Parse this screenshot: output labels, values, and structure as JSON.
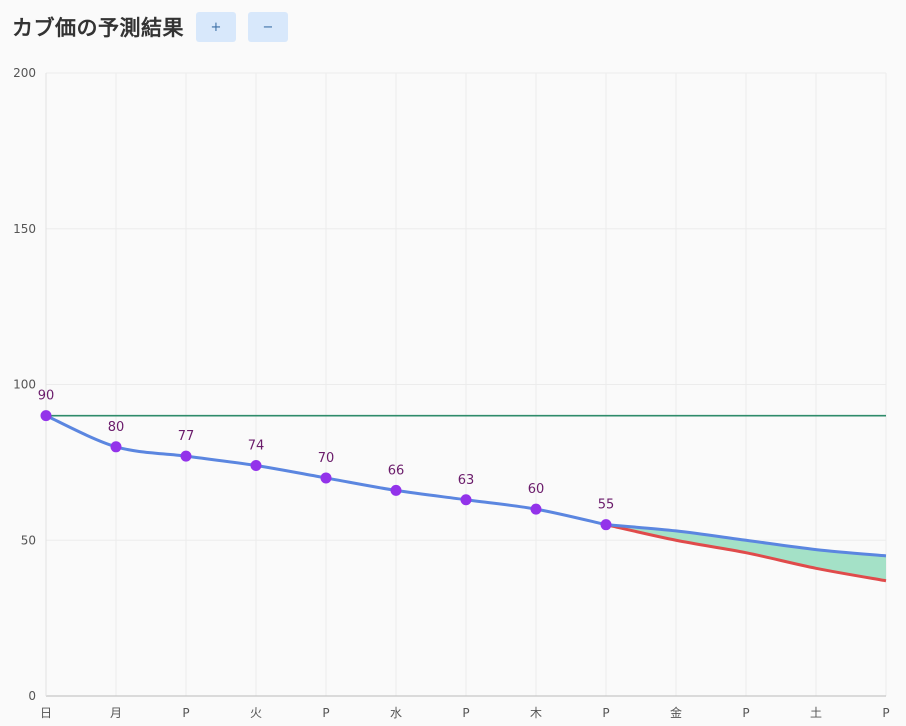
{
  "title": "カブ価の予測結果",
  "buttons": {
    "zoom_in": "+",
    "zoom_out": "−"
  },
  "colors": {
    "actual_line": "#5b86e0",
    "actual_point": "#9333ea",
    "upper_line": "#5b86e0",
    "lower_line": "#e04b4b",
    "band_fill": "#9fdfc4",
    "reference_line": "#2e8b6a",
    "data_label": "#6a1b6a"
  },
  "chart_data": {
    "type": "line",
    "categories": [
      "日",
      "月",
      "P",
      "火",
      "P",
      "水",
      "P",
      "木",
      "P",
      "金",
      "P",
      "土",
      "P"
    ],
    "ylim": [
      0,
      200
    ],
    "yticks": [
      0,
      50,
      100,
      150,
      200
    ],
    "grid": true,
    "series": [
      {
        "values": [
          90,
          80,
          77,
          74,
          70,
          66,
          63,
          60,
          55,
          null,
          null,
          null,
          null
        ]
      },
      {
        "values": [
          null,
          null,
          null,
          null,
          null,
          null,
          null,
          null,
          55,
          53,
          50,
          47,
          45
        ]
      },
      {
        "values": [
          null,
          null,
          null,
          null,
          null,
          null,
          null,
          null,
          55,
          50,
          46,
          41,
          37
        ]
      },
      {
        "values": [
          90,
          90,
          90,
          90,
          90,
          90,
          90,
          90,
          90,
          90,
          90,
          90,
          90
        ]
      }
    ],
    "data_labels": [
      "90",
      "80",
      "77",
      "74",
      "70",
      "66",
      "63",
      "60",
      "55"
    ]
  }
}
